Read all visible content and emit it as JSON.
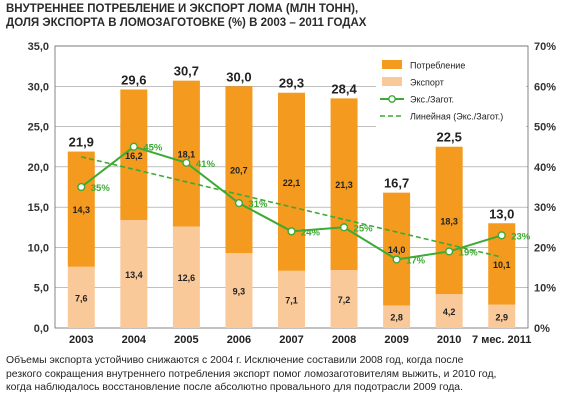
{
  "title_line1": "ВНУТРЕННЕЕ ПОТРЕБЛЕНИЕ И ЭКСПОРТ ЛОМА (МЛН ТОНН),",
  "title_line2": "ДОЛЯ ЭКСПОРТА В ЛОМОЗАГОТОВКЕ (%) В 2003 – 2011 ГОДАХ",
  "caption_lines": [
    "Объемы экспорта устойчиво снижаются с 2004 г. Исключение составили 2008 год, когда после",
    "резкого сокращения внутреннего потребления экспорт помог ломозаготовителям выжить, и 2010 год,",
    "когда наблюдалось восстановление после абсолютно провального для подотрасли 2009 года."
  ],
  "colors": {
    "consumption": "#F39A1F",
    "export": "#FAC99A",
    "share_line": "#3DAA35",
    "trend_line": "#3DAA35",
    "grid": "#9a9a9a"
  },
  "chart_data": {
    "type": "bar",
    "stacked": true,
    "categories": [
      "2003",
      "2004",
      "2005",
      "2006",
      "2007",
      "2008",
      "2009",
      "2010",
      "7 мес. 2011"
    ],
    "series": [
      {
        "name": "Экспорт",
        "values": [
          7.6,
          13.4,
          12.6,
          9.3,
          7.1,
          7.2,
          2.8,
          4.2,
          2.9
        ],
        "labels": [
          "7,6",
          "13,4",
          "12,6",
          "9,3",
          "7,1",
          "7,2",
          "2,8",
          "4,2",
          "2,9"
        ]
      },
      {
        "name": "Потребление",
        "values": [
          14.3,
          16.2,
          18.1,
          20.7,
          22.1,
          21.3,
          14.0,
          18.3,
          10.1
        ],
        "labels": [
          "14,3",
          "16,2",
          "18,1",
          "20,7",
          "22,1",
          "21,3",
          "14,0",
          "18,3",
          "10,1"
        ]
      }
    ],
    "totals": [
      21.9,
      29.6,
      30.7,
      30.0,
      29.3,
      28.4,
      16.7,
      22.5,
      13.0
    ],
    "total_labels": [
      "21,9",
      "29,6",
      "30,7",
      "30,0",
      "29,3",
      "28,4",
      "16,7",
      "22,5",
      "13,0"
    ],
    "line_series": [
      {
        "name": "Экс./Загот.",
        "axis": "right",
        "values": [
          35,
          45,
          41,
          31,
          24,
          25,
          17,
          19,
          23
        ],
        "labels": [
          "35%",
          "45%",
          "41%",
          "31%",
          "24%",
          "25%",
          "17%",
          "19%",
          "23%"
        ]
      },
      {
        "name": "Линейная (Экс./Загот.)",
        "axis": "right",
        "style": "dashed",
        "values": [
          42.5,
          39.4,
          36.3,
          33.2,
          30.0,
          26.9,
          23.8,
          20.7,
          17.6
        ]
      }
    ],
    "y_left": {
      "min": 0,
      "max": 35,
      "ticks": [
        "0,0",
        "5,0",
        "10,0",
        "15,0",
        "20,0",
        "25,0",
        "30,0",
        "35,0"
      ]
    },
    "y_right": {
      "min": 0,
      "max": 70,
      "ticks": [
        "0%",
        "10%",
        "20%",
        "30%",
        "40%",
        "50%",
        "60%",
        "70%"
      ]
    },
    "legend": {
      "position": "top-right",
      "entries": [
        "Потребление",
        "Экспорт",
        "Экс./Загот.",
        "Линейная (Экс./Загот.)"
      ]
    },
    "grid": true
  }
}
